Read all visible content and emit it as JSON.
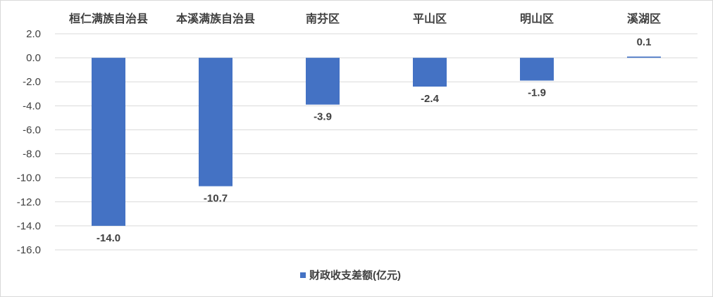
{
  "chart_data": {
    "type": "bar",
    "categories": [
      "桓仁满族自治县",
      "本溪满族自治县",
      "南芬区",
      "平山区",
      "明山区",
      "溪湖区"
    ],
    "series": [
      {
        "name": "财政收支差额(亿元)",
        "values": [
          -14.0,
          -10.7,
          -3.9,
          -2.4,
          -1.9,
          0.1
        ],
        "color": "#4472C4"
      }
    ],
    "ylim": [
      -16,
      2
    ],
    "yticks": [
      "2.0",
      "0.0",
      "-2.0",
      "-4.0",
      "-6.0",
      "-8.0",
      "-10.0",
      "-12.0",
      "-14.0",
      "-16.0"
    ],
    "data_labels": [
      "-14.0",
      "-10.7",
      "-3.9",
      "-2.4",
      "-1.9",
      "0.1"
    ],
    "grid": true,
    "legend_position": "bottom",
    "category_axis_position": "top"
  }
}
